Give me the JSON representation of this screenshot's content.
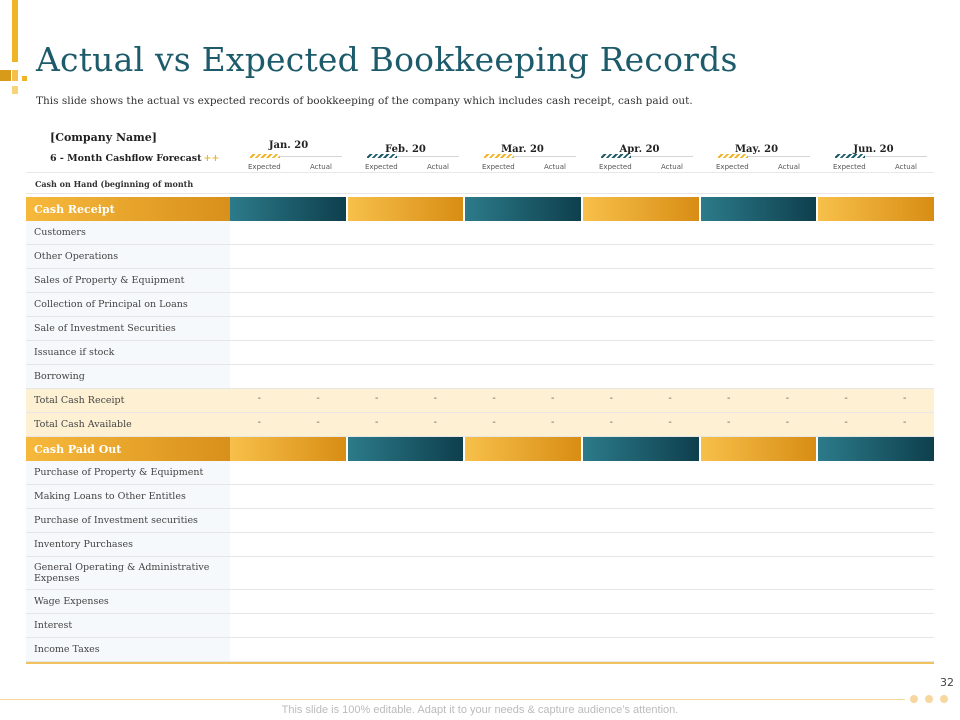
{
  "header": {
    "title": "Actual vs Expected Bookkeeping Records",
    "subtitle": "This slide shows the actual vs expected records of bookkeeping of the company which includes cash receipt, cash paid out."
  },
  "forecast": {
    "company": "[Company Name]",
    "label": "6 - Month Cashflow Forecast",
    "plus_glyph": "++",
    "cash_on_hand": "Cash on Hand (beginning of month"
  },
  "months": [
    {
      "name": "Jan. 20",
      "expected": "Expected",
      "actual": "Actual",
      "hatch": "gold"
    },
    {
      "name": "Feb. 20",
      "expected": "Expected",
      "actual": "Actual",
      "hatch": "teal"
    },
    {
      "name": "Mar. 20",
      "expected": "Expected",
      "actual": "Actual",
      "hatch": "gold"
    },
    {
      "name": "Apr. 20",
      "expected": "Expected",
      "actual": "Actual",
      "hatch": "teal"
    },
    {
      "name": "May. 20",
      "expected": "Expected",
      "actual": "Actual",
      "hatch": "gold"
    },
    {
      "name": "Jun. 20",
      "expected": "Expected",
      "actual": "Actual",
      "hatch": "teal"
    }
  ],
  "cash_receipt": {
    "section": "Cash Receipt",
    "rows": [
      "Customers",
      "Other Operations",
      "Sales of Property & Equipment",
      "Collection of Principal on Loans",
      "Sale of Investment Securities",
      "Issuance if stock",
      "Borrowing"
    ]
  },
  "totals": [
    {
      "label": "Total Cash Receipt",
      "values": [
        "-",
        "-",
        "-",
        "-",
        "-",
        "-",
        "-",
        "-",
        "-",
        "-",
        "-",
        "-"
      ]
    },
    {
      "label": "Total Cash Available",
      "values": [
        "-",
        "-",
        "-",
        "-",
        "-",
        "-",
        "-",
        "-",
        "-",
        "-",
        "-",
        "-"
      ]
    }
  ],
  "cash_paid_out": {
    "section": "Cash Paid Out",
    "rows": [
      "Purchase of Property & Equipment",
      "Making Loans to Other Entitles",
      "Purchase of Investment securities",
      "Inventory Purchases",
      "General Operating & Administrative Expenses",
      "Wage Expenses",
      "Interest",
      "Income Taxes"
    ]
  },
  "footer": {
    "page_number": "32",
    "note": "This slide is 100% editable. Adapt it to your needs & capture audience’s attention."
  },
  "colors": {
    "title": "#1d5b6b",
    "gold": "#f0b429",
    "teal": "#1d5b6b",
    "total_row": "#fdf0d3"
  }
}
